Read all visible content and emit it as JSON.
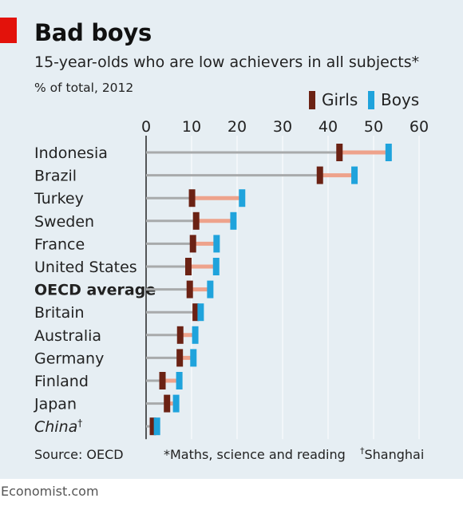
{
  "header": {
    "title": "Bad boys",
    "subtitle": "15-year-olds who are low achievers in all subjects*",
    "units": "% of total, 2012"
  },
  "legend": {
    "girls_label": "Girls",
    "boys_label": "Boys"
  },
  "colors": {
    "accent_red": "#e3120b",
    "girls": "#6b2214",
    "boys": "#1fa3dc",
    "gap": "#eea28b",
    "baseline": "#a8aaab",
    "panel_bg": "#e6eef3"
  },
  "footer": {
    "source": "Source: OECD",
    "footnote_subjects": "*Maths, science and reading",
    "footnote_mark": "†",
    "footnote_shanghai": "Shanghai"
  },
  "brand": "Economist.com",
  "chart_data": {
    "type": "dot-range",
    "title": "Bad boys",
    "subtitle": "15-year-olds who are low achievers in all subjects*",
    "xlabel": "",
    "ylabel": "",
    "xlim": [
      0,
      60
    ],
    "xticks": [
      0,
      10,
      20,
      30,
      40,
      50,
      60
    ],
    "grid": true,
    "legend_position": "top-right",
    "categories": [
      "Indonesia",
      "Brazil",
      "Turkey",
      "Sweden",
      "France",
      "United States",
      "OECD average",
      "Britain",
      "Australia",
      "Germany",
      "Finland",
      "Japan",
      "China"
    ],
    "highlight": [
      "OECD average"
    ],
    "italic": [
      "China"
    ],
    "superscript": {
      "China": "†"
    },
    "series": [
      {
        "name": "Girls",
        "values": [
          42.5,
          38.2,
          10.1,
          11.0,
          10.3,
          9.3,
          9.6,
          10.9,
          7.5,
          7.4,
          3.6,
          4.6,
          1.5
        ]
      },
      {
        "name": "Boys",
        "values": [
          53.3,
          45.8,
          21.1,
          19.2,
          15.5,
          15.4,
          14.1,
          12.0,
          10.8,
          10.4,
          7.3,
          6.6,
          2.4
        ]
      }
    ]
  }
}
